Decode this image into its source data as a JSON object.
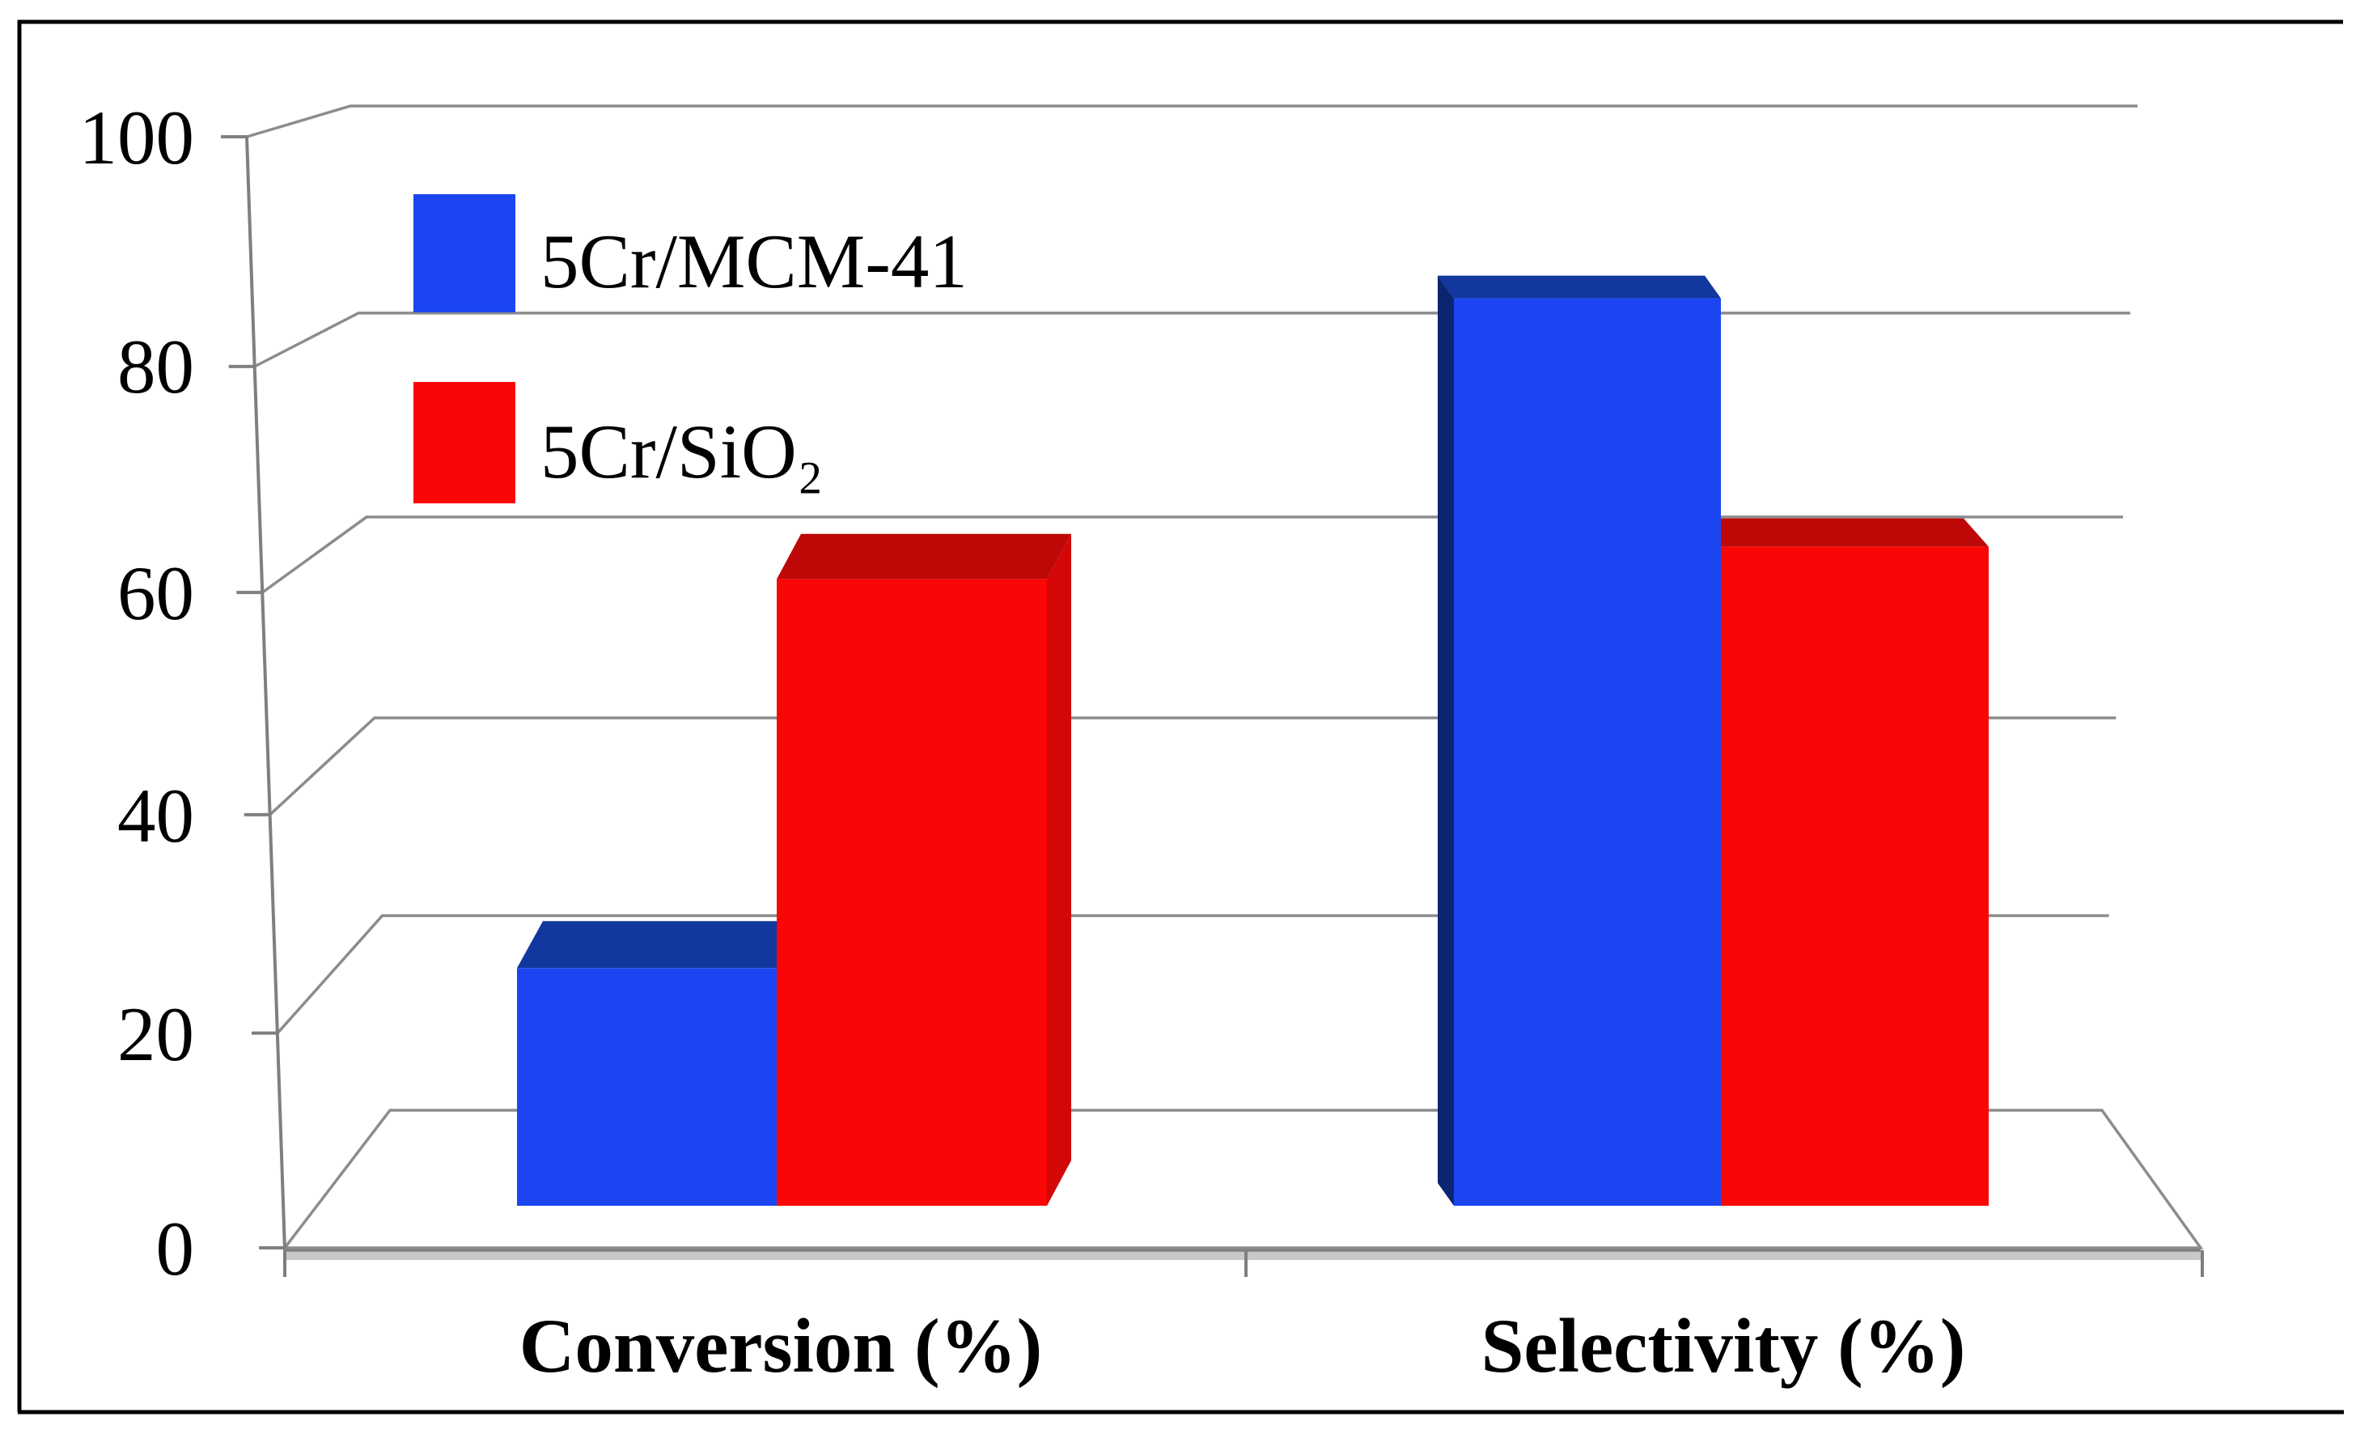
{
  "chart_data": {
    "type": "bar",
    "view": "3d-perspective-column",
    "title": "",
    "xlabel": "",
    "ylabel": "",
    "categories": [
      "Conversion (%)",
      "Selectivity (%)"
    ],
    "series": [
      {
        "name": "5Cr/MCM-41",
        "values": [
          22,
          84
        ]
      },
      {
        "name": "5Cr/SiO₂",
        "values": [
          58,
          61
        ]
      }
    ],
    "ylim": [
      0,
      100
    ],
    "yticks": [
      0,
      20,
      40,
      60,
      80,
      100
    ],
    "ytick_labels_top_to_bottom": [
      "100",
      "80",
      "60",
      "40",
      "20",
      "0"
    ],
    "grid": true,
    "legend_position": "top-left",
    "colors": {
      "series0_front": "#1B45F0",
      "series0_top": "#12379E",
      "series0_side": "#0C2570",
      "series1_front": "#FB0606",
      "series1_top": "#BE0707",
      "series1_side": "#D30707",
      "gridline": "#8C8C8C",
      "axis": "#7F7F7F",
      "floor_edge": "#C8C8C8",
      "frame": "#000000",
      "text": "#000000"
    }
  }
}
